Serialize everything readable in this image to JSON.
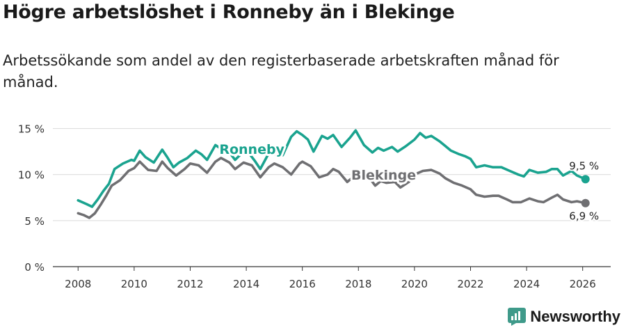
{
  "title": "Högre arbetslöshet i Ronneby än i Blekinge",
  "subtitle": "Arbetssökande som andel av den registerbaserade arbetskraften månad för månad.",
  "brand": {
    "name": "Newsworthy",
    "color": "#3f9a8a"
  },
  "chart_data": {
    "type": "line",
    "x_ticks": [
      2008,
      2010,
      2012,
      2014,
      2016,
      2018,
      2020,
      2022,
      2024,
      2026
    ],
    "y_ticks": [
      0,
      5,
      10,
      15
    ],
    "y_tick_labels": [
      "0 %",
      "5 %",
      "10 %",
      "15 %"
    ],
    "xlim": [
      2007.1,
      2027.0
    ],
    "ylim": [
      0,
      15.5
    ],
    "grid": true,
    "series": [
      {
        "name": "Ronneby",
        "label": "Ronneby",
        "color": "#1aa38f",
        "end_label": "9,5 %",
        "points": [
          [
            2008.0,
            7.2
          ],
          [
            2008.3,
            6.8
          ],
          [
            2008.5,
            6.5
          ],
          [
            2008.7,
            7.3
          ],
          [
            2008.9,
            8.2
          ],
          [
            2009.1,
            9.0
          ],
          [
            2009.3,
            10.6
          ],
          [
            2009.6,
            11.2
          ],
          [
            2009.9,
            11.6
          ],
          [
            2010.0,
            11.5
          ],
          [
            2010.2,
            12.6
          ],
          [
            2010.4,
            11.9
          ],
          [
            2010.7,
            11.3
          ],
          [
            2011.0,
            12.7
          ],
          [
            2011.2,
            11.8
          ],
          [
            2011.4,
            10.8
          ],
          [
            2011.6,
            11.3
          ],
          [
            2011.9,
            11.8
          ],
          [
            2012.2,
            12.6
          ],
          [
            2012.4,
            12.2
          ],
          [
            2012.6,
            11.6
          ],
          [
            2012.9,
            13.2
          ],
          [
            2013.1,
            12.8
          ],
          [
            2013.4,
            12.4
          ],
          [
            2013.6,
            11.6
          ],
          [
            2013.9,
            12.5
          ],
          [
            2014.1,
            12.3
          ],
          [
            2014.3,
            11.5
          ],
          [
            2014.5,
            10.6
          ],
          [
            2014.8,
            12.3
          ],
          [
            2015.0,
            12.2
          ],
          [
            2015.3,
            12.1
          ],
          [
            2015.6,
            14.1
          ],
          [
            2015.8,
            14.7
          ],
          [
            2016.0,
            14.3
          ],
          [
            2016.2,
            13.8
          ],
          [
            2016.4,
            12.5
          ],
          [
            2016.7,
            14.2
          ],
          [
            2016.9,
            13.9
          ],
          [
            2017.1,
            14.3
          ],
          [
            2017.4,
            13.0
          ],
          [
            2017.7,
            14.0
          ],
          [
            2017.9,
            14.8
          ],
          [
            2018.2,
            13.2
          ],
          [
            2018.5,
            12.4
          ],
          [
            2018.7,
            12.9
          ],
          [
            2018.9,
            12.6
          ],
          [
            2019.2,
            13.0
          ],
          [
            2019.4,
            12.5
          ],
          [
            2019.7,
            13.1
          ],
          [
            2020.0,
            13.8
          ],
          [
            2020.2,
            14.5
          ],
          [
            2020.4,
            14.0
          ],
          [
            2020.6,
            14.2
          ],
          [
            2020.9,
            13.6
          ],
          [
            2021.1,
            13.1
          ],
          [
            2021.3,
            12.6
          ],
          [
            2021.6,
            12.2
          ],
          [
            2021.8,
            12.0
          ],
          [
            2022.0,
            11.7
          ],
          [
            2022.2,
            10.8
          ],
          [
            2022.5,
            11.0
          ],
          [
            2022.8,
            10.8
          ],
          [
            2023.1,
            10.8
          ],
          [
            2023.4,
            10.4
          ],
          [
            2023.7,
            10.0
          ],
          [
            2023.9,
            9.8
          ],
          [
            2024.1,
            10.5
          ],
          [
            2024.4,
            10.2
          ],
          [
            2024.7,
            10.3
          ],
          [
            2024.9,
            10.6
          ],
          [
            2025.1,
            10.6
          ],
          [
            2025.3,
            9.9
          ],
          [
            2025.6,
            10.4
          ],
          [
            2025.8,
            9.9
          ],
          [
            2026.1,
            9.5
          ]
        ]
      },
      {
        "name": "Blekinge",
        "label": "Blekinge",
        "color": "#6f6f72",
        "end_label": "6,9 %",
        "points": [
          [
            2008.0,
            5.8
          ],
          [
            2008.2,
            5.6
          ],
          [
            2008.4,
            5.3
          ],
          [
            2008.6,
            5.8
          ],
          [
            2008.8,
            6.7
          ],
          [
            2009.0,
            7.7
          ],
          [
            2009.2,
            8.8
          ],
          [
            2009.5,
            9.4
          ],
          [
            2009.8,
            10.4
          ],
          [
            2010.0,
            10.7
          ],
          [
            2010.2,
            11.4
          ],
          [
            2010.5,
            10.5
          ],
          [
            2010.8,
            10.4
          ],
          [
            2011.0,
            11.4
          ],
          [
            2011.2,
            10.7
          ],
          [
            2011.5,
            9.9
          ],
          [
            2011.8,
            10.6
          ],
          [
            2012.0,
            11.2
          ],
          [
            2012.3,
            11.0
          ],
          [
            2012.6,
            10.2
          ],
          [
            2012.9,
            11.4
          ],
          [
            2013.1,
            11.8
          ],
          [
            2013.4,
            11.3
          ],
          [
            2013.6,
            10.6
          ],
          [
            2013.9,
            11.3
          ],
          [
            2014.2,
            11.0
          ],
          [
            2014.5,
            9.7
          ],
          [
            2014.8,
            10.8
          ],
          [
            2015.0,
            11.2
          ],
          [
            2015.3,
            10.8
          ],
          [
            2015.6,
            10.0
          ],
          [
            2015.9,
            11.2
          ],
          [
            2016.0,
            11.4
          ],
          [
            2016.3,
            10.9
          ],
          [
            2016.6,
            9.7
          ],
          [
            2016.9,
            10.0
          ],
          [
            2017.1,
            10.6
          ],
          [
            2017.3,
            10.3
          ],
          [
            2017.6,
            9.2
          ],
          [
            2017.8,
            9.7
          ],
          [
            2018.1,
            10.1
          ],
          [
            2018.4,
            9.6
          ],
          [
            2018.6,
            8.8
          ],
          [
            2018.8,
            9.3
          ],
          [
            2019.0,
            9.1
          ],
          [
            2019.3,
            9.2
          ],
          [
            2019.5,
            8.6
          ],
          [
            2019.8,
            9.2
          ],
          [
            2020.0,
            10.0
          ],
          [
            2020.3,
            10.4
          ],
          [
            2020.6,
            10.5
          ],
          [
            2020.9,
            10.1
          ],
          [
            2021.1,
            9.6
          ],
          [
            2021.4,
            9.1
          ],
          [
            2021.7,
            8.8
          ],
          [
            2022.0,
            8.4
          ],
          [
            2022.2,
            7.8
          ],
          [
            2022.5,
            7.6
          ],
          [
            2022.8,
            7.7
          ],
          [
            2023.0,
            7.7
          ],
          [
            2023.3,
            7.3
          ],
          [
            2023.5,
            7.0
          ],
          [
            2023.8,
            7.0
          ],
          [
            2024.1,
            7.4
          ],
          [
            2024.4,
            7.1
          ],
          [
            2024.6,
            7.0
          ],
          [
            2024.9,
            7.5
          ],
          [
            2025.1,
            7.8
          ],
          [
            2025.3,
            7.3
          ],
          [
            2025.6,
            7.0
          ],
          [
            2025.8,
            7.1
          ],
          [
            2026.1,
            6.9
          ]
        ]
      }
    ]
  }
}
